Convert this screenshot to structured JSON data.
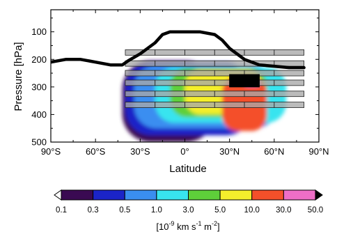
{
  "chart_data": {
    "type": "heatmap",
    "title": "",
    "xlabel": "Latitude",
    "ylabel": "Pressure [hPa]",
    "xlim": [
      -90,
      90
    ],
    "ylim": [
      500,
      20
    ],
    "x_ticks": [
      {
        "value": -90,
        "label": "90°S"
      },
      {
        "value": -60,
        "label": "60°S"
      },
      {
        "value": -30,
        "label": "30°S"
      },
      {
        "value": 0,
        "label": "0°"
      },
      {
        "value": 30,
        "label": "30°N"
      },
      {
        "value": 60,
        "label": "60°N"
      },
      {
        "value": 90,
        "label": "90°N"
      }
    ],
    "y_ticks": [
      {
        "value": 100,
        "label": "100"
      },
      {
        "value": 200,
        "label": "200"
      },
      {
        "value": 300,
        "label": "300"
      },
      {
        "value": 400,
        "label": "400"
      },
      {
        "value": 500,
        "label": "500"
      }
    ],
    "colorbar": {
      "label_parts": [
        "[10",
        "-9",
        " km s",
        "-1",
        " m",
        "-2",
        "]"
      ],
      "ticks": [
        "0.1",
        "0.3",
        "0.5",
        "1.0",
        "3.0",
        "5.0",
        "10.0",
        "30.0",
        "50.0"
      ],
      "colors": [
        "#3a0a52",
        "#1b24c8",
        "#3a8ef0",
        "#38e4ef",
        "#5ecf3a",
        "#f4ef2c",
        "#f4502a",
        "#ee6ec6"
      ],
      "low_color": "#ffffff",
      "high_color": "#000000"
    },
    "tropopause_line": {
      "lat": [
        -90,
        -80,
        -70,
        -60,
        -50,
        -42,
        -38,
        -30,
        -20,
        -15,
        -10,
        0,
        10,
        20,
        25,
        30,
        40,
        50,
        60,
        70,
        80
      ],
      "pressure": [
        210,
        200,
        200,
        210,
        220,
        220,
        205,
        180,
        140,
        110,
        100,
        100,
        100,
        110,
        130,
        160,
        200,
        220,
        225,
        230,
        230
      ]
    },
    "grid_boxes": {
      "lat_edges": [
        -40,
        -20,
        0,
        20,
        40,
        60,
        80
      ],
      "pressure_bands": [
        [
          165,
          185
        ],
        [
          205,
          225
        ],
        [
          240,
          260
        ],
        [
          275,
          295
        ],
        [
          315,
          335
        ],
        [
          355,
          375
        ]
      ]
    },
    "highlight_box": {
      "lat": [
        30,
        50
      ],
      "pressure": [
        255,
        300
      ]
    },
    "regions": [
      {
        "level": 1,
        "lat": [
          -42,
          20
        ],
        "pressure": [
          205,
          500
        ]
      },
      {
        "level": 2,
        "lat": [
          -40,
          45
        ],
        "pressure": [
          212,
          475
        ]
      },
      {
        "level": 3,
        "lat": [
          -34,
          62
        ],
        "pressure": [
          222,
          450
        ]
      },
      {
        "level": 4,
        "lat": [
          -20,
          68
        ],
        "pressure": [
          230,
          430
        ]
      },
      {
        "level": 5,
        "lat": [
          -10,
          55
        ],
        "pressure": [
          232,
          410
        ]
      },
      {
        "level": 6,
        "lat": [
          0,
          52
        ],
        "pressure": [
          238,
          400
        ]
      },
      {
        "level": 7,
        "lat": [
          25,
          55
        ],
        "pressure": [
          262,
          460
        ]
      },
      {
        "level": 8,
        "lat": [
          40,
          50
        ],
        "pressure": [
          272,
          298
        ]
      }
    ]
  }
}
